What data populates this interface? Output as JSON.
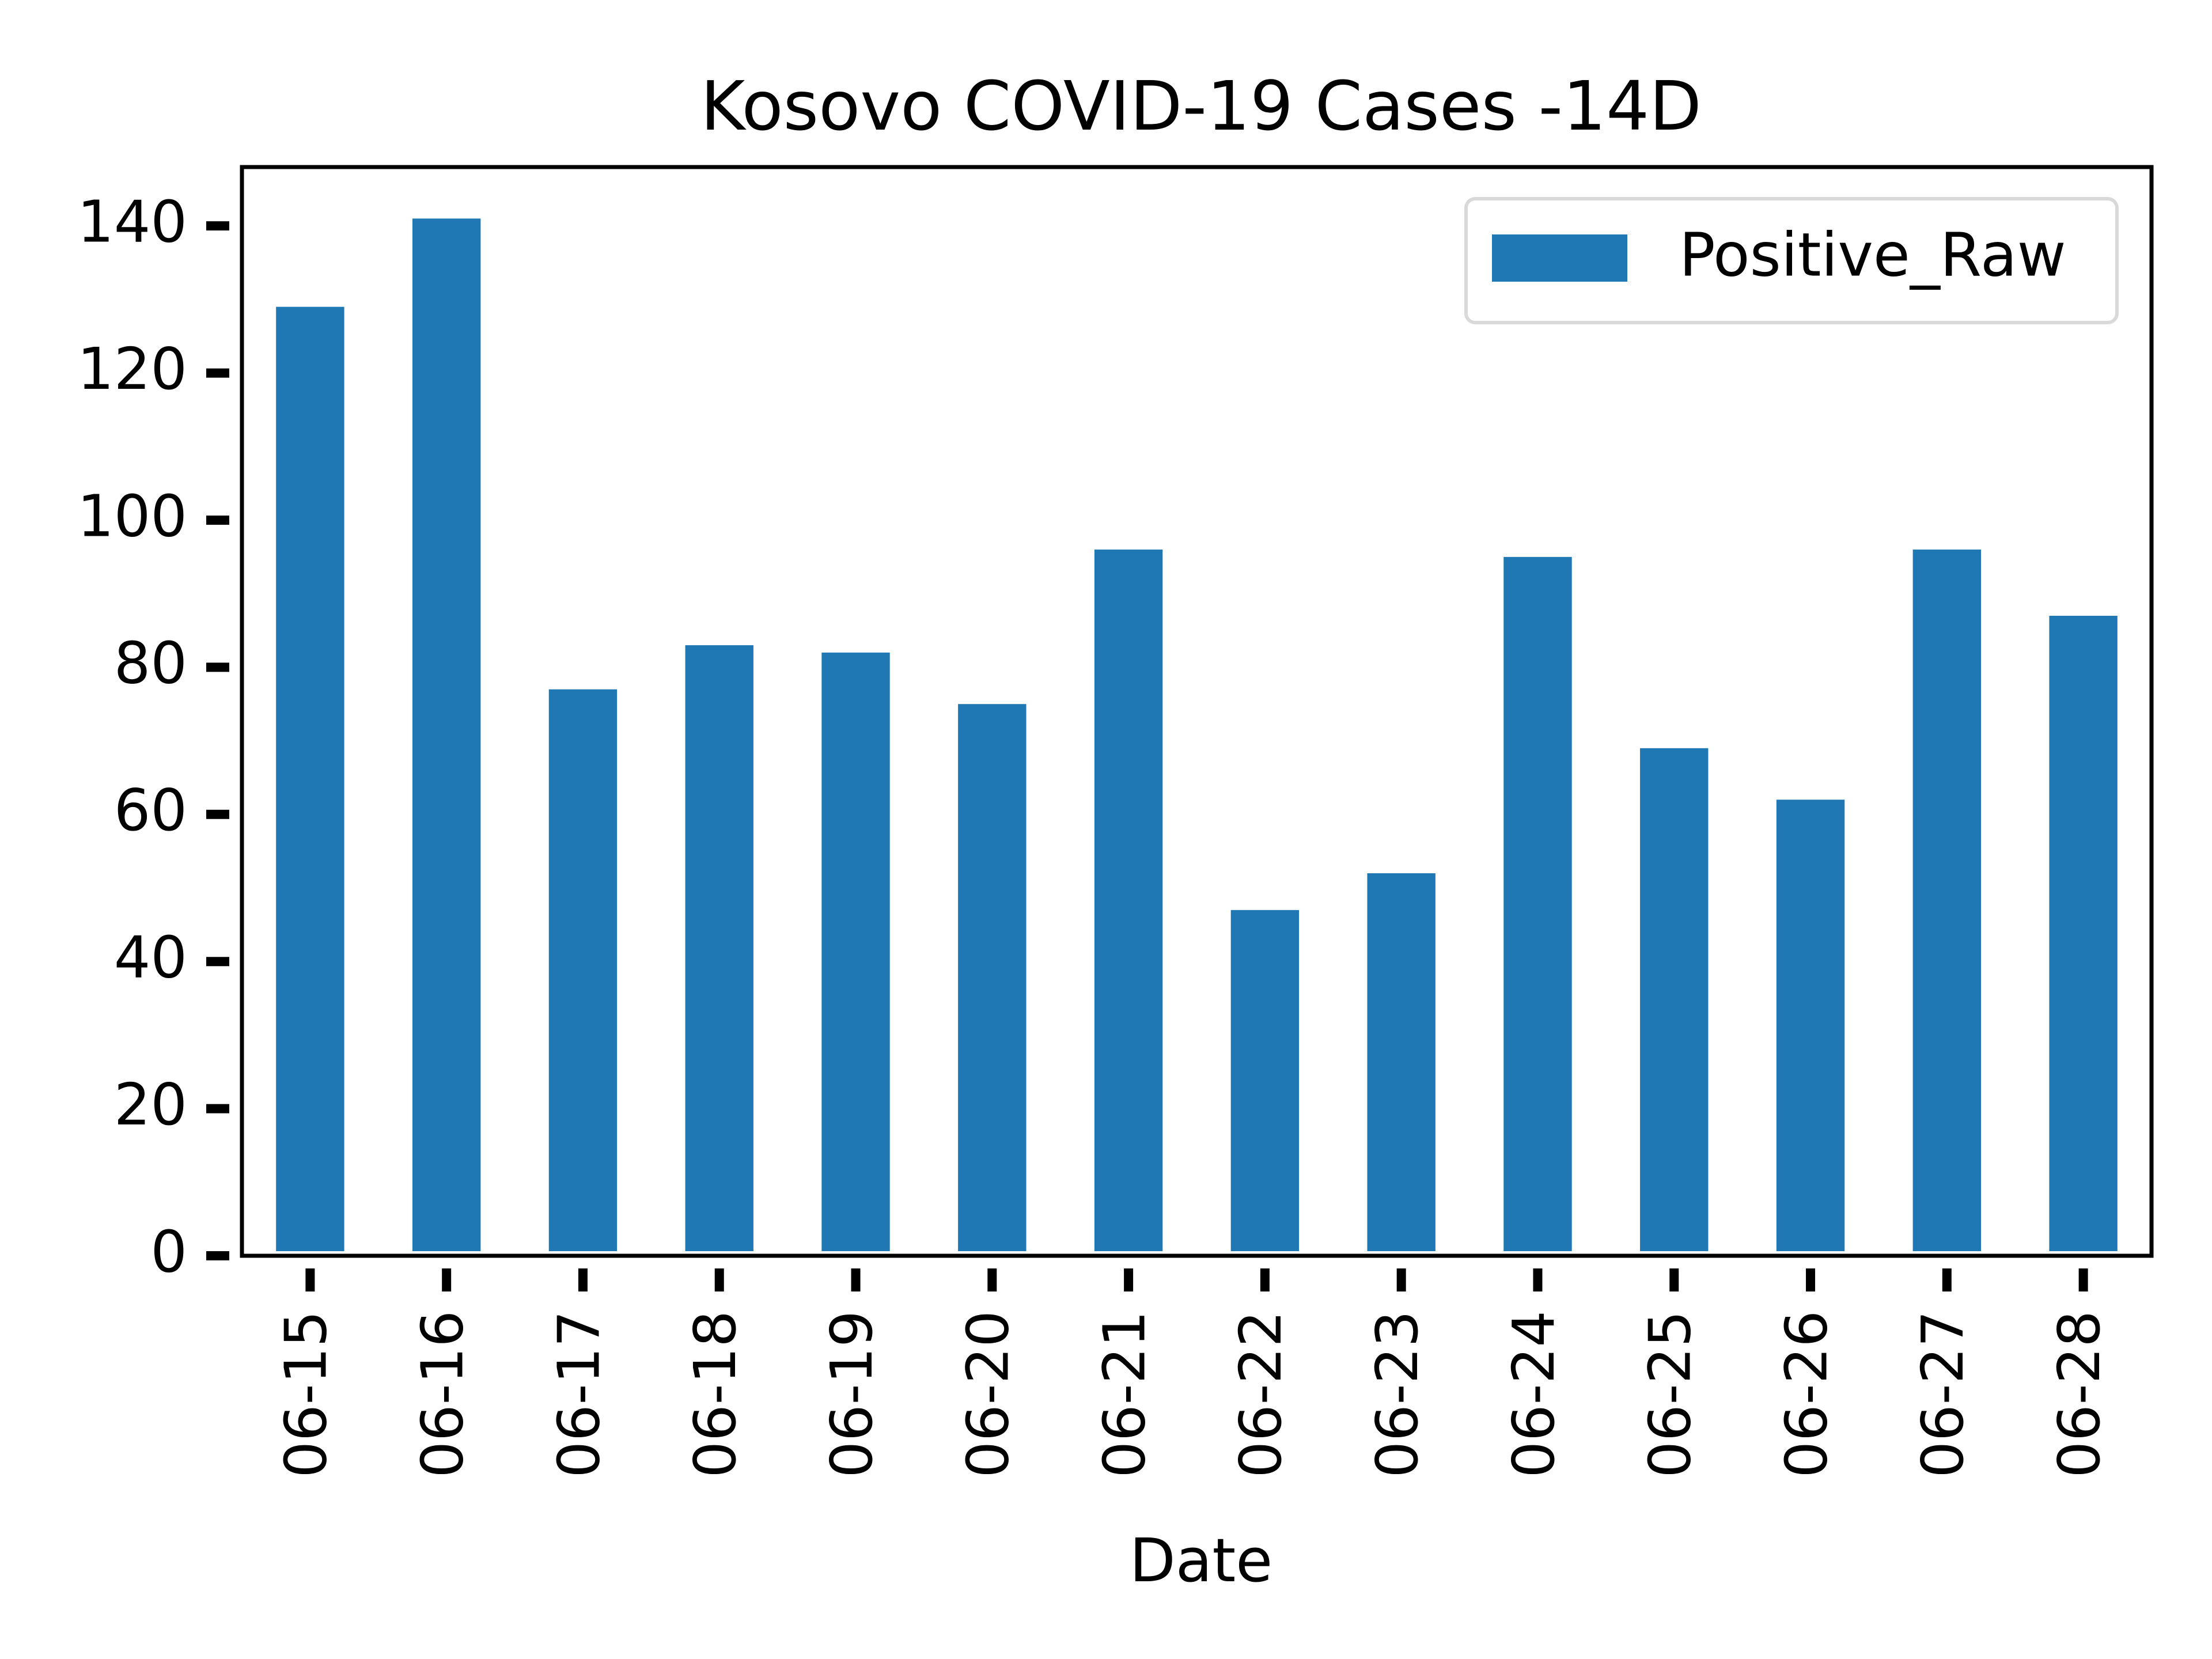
{
  "chart_data": {
    "type": "bar",
    "title": "Kosovo COVID-19 Cases -14D",
    "xlabel": "Date",
    "ylabel": "",
    "categories": [
      "06-15",
      "06-16",
      "06-17",
      "06-18",
      "06-19",
      "06-20",
      "06-21",
      "06-22",
      "06-23",
      "06-24",
      "06-25",
      "06-26",
      "06-27",
      "06-28"
    ],
    "series": [
      {
        "name": "Positive_Raw",
        "color": "#1f77b4",
        "values": [
          129,
          141,
          77,
          83,
          82,
          75,
          96,
          47,
          52,
          95,
          69,
          62,
          96,
          87
        ]
      }
    ],
    "ylim": [
      0,
      148
    ],
    "yticks": [
      0,
      20,
      40,
      60,
      80,
      100,
      120,
      140
    ],
    "grid": false,
    "legend": {
      "position": "top-right",
      "entries": [
        "Positive_Raw"
      ]
    }
  }
}
